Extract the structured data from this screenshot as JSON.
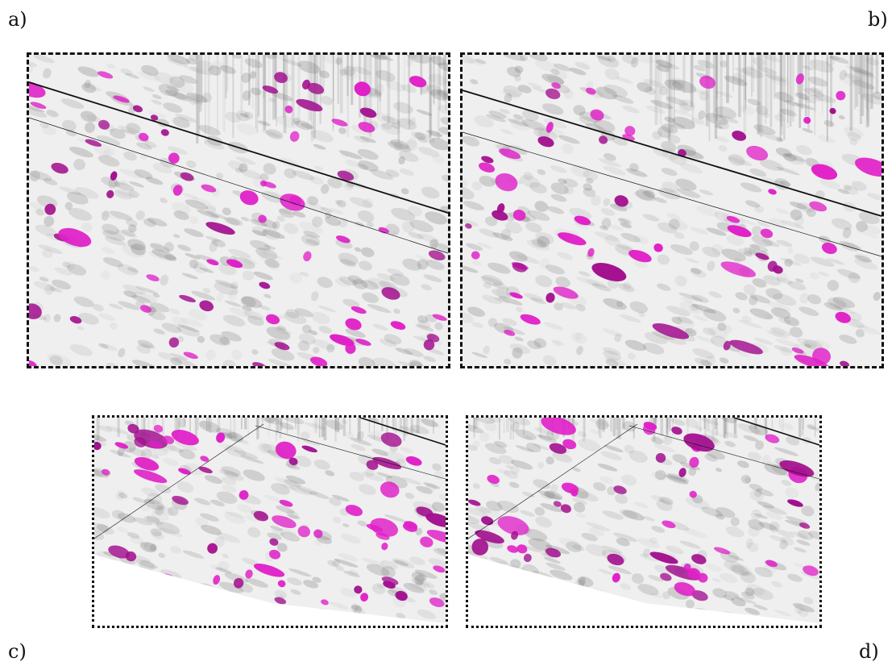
{
  "figure": {
    "panels": [
      {
        "id": "a",
        "label": "a)",
        "border_style": "dashed"
      },
      {
        "id": "b",
        "label": "b)",
        "border_style": "dashed"
      },
      {
        "id": "c",
        "label": "c)",
        "border_style": "dotted"
      },
      {
        "id": "d",
        "label": "d)",
        "border_style": "dotted"
      }
    ],
    "colors": {
      "background_texture": "#efefef",
      "texture_dark": "#7a7a7a",
      "highlight_magenta": "#e020c8",
      "highlight_dark_magenta": "#a3108f",
      "line": "#111111"
    }
  }
}
